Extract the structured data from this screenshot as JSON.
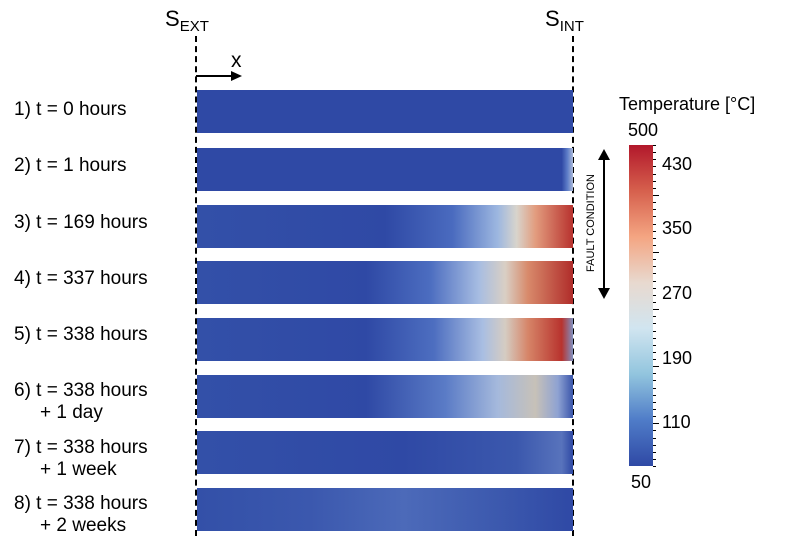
{
  "surfaces": {
    "ext_main": "S",
    "ext_sub": "EXT",
    "int_main": "S",
    "int_sub": "INT"
  },
  "axis": {
    "x_label": "x"
  },
  "rows": [
    {
      "label": "1) t = 0 hours",
      "label2": "",
      "profile": [
        [
          0,
          "#2f49a5"
        ],
        [
          1,
          "#2f49a5"
        ]
      ]
    },
    {
      "label": "2) t = 1 hours",
      "label2": "",
      "profile": [
        [
          0,
          "#2f49a5"
        ],
        [
          0.97,
          "#2f49a5"
        ],
        [
          0.985,
          "#5d7dc8"
        ],
        [
          1,
          "#aab8d8"
        ]
      ]
    },
    {
      "label": "3) t = 169 hours",
      "label2": "",
      "profile": [
        [
          0,
          "#3350a8"
        ],
        [
          0.5,
          "#2f49a5"
        ],
        [
          0.68,
          "#4a6bbf"
        ],
        [
          0.8,
          "#9db7e0"
        ],
        [
          0.85,
          "#d8d4cc"
        ],
        [
          0.9,
          "#e29c7e"
        ],
        [
          1,
          "#b8322e"
        ]
      ]
    },
    {
      "label": "4) t = 337 hours",
      "label2": "",
      "profile": [
        [
          0,
          "#3350a8"
        ],
        [
          0.45,
          "#2f49a5"
        ],
        [
          0.62,
          "#4c6dc0"
        ],
        [
          0.75,
          "#a7bde2"
        ],
        [
          0.82,
          "#d9cfc4"
        ],
        [
          0.88,
          "#d88a6b"
        ],
        [
          1,
          "#b02c2a"
        ]
      ]
    },
    {
      "label": "5) t = 338 hours",
      "label2": "",
      "profile": [
        [
          0,
          "#3350a8"
        ],
        [
          0.45,
          "#2f49a5"
        ],
        [
          0.63,
          "#4d6ec0"
        ],
        [
          0.76,
          "#a9bee2"
        ],
        [
          0.82,
          "#d5ccc2"
        ],
        [
          0.88,
          "#d68568"
        ],
        [
          0.97,
          "#b8332e"
        ],
        [
          1,
          "#7f8fbf"
        ]
      ]
    },
    {
      "label": "6) t = 338 hours",
      "label2": "+ 1 day",
      "profile": [
        [
          0,
          "#3350a8"
        ],
        [
          0.45,
          "#2f49a5"
        ],
        [
          0.66,
          "#5a7bc6"
        ],
        [
          0.8,
          "#a5b9dc"
        ],
        [
          0.9,
          "#c7c1b8"
        ],
        [
          0.96,
          "#8ea2d2"
        ],
        [
          1,
          "#3a55ab"
        ]
      ]
    },
    {
      "label": "7) t = 338 hours",
      "label2": "+ 1 week",
      "profile": [
        [
          0,
          "#3350a8"
        ],
        [
          0.55,
          "#2f49a5"
        ],
        [
          0.85,
          "#3b58ad"
        ],
        [
          0.97,
          "#5873bc"
        ],
        [
          1,
          "#2f49a5"
        ]
      ]
    },
    {
      "label": "8) t = 338 hours",
      "label2": "+ 2 weeks",
      "profile": [
        [
          0,
          "#3350a8"
        ],
        [
          0.3,
          "#3b58ae"
        ],
        [
          0.55,
          "#4c6ab9"
        ],
        [
          0.8,
          "#3c59ae"
        ],
        [
          1,
          "#2f49a5"
        ]
      ]
    }
  ],
  "fault": {
    "label": "FAULT CONDITION"
  },
  "colorbar": {
    "title": "Temperature [°C]",
    "min": 50,
    "max": 500,
    "labels": [
      500,
      430,
      350,
      270,
      190,
      110,
      50
    ],
    "tick_values": [
      430,
      350,
      270,
      190,
      110
    ],
    "colors": [
      "#b2182b",
      "#d6604d",
      "#f4a582",
      "#e8d9cf",
      "#d1e5f0",
      "#92c5de",
      "#4f7cc8",
      "#2f49a5"
    ]
  }
}
